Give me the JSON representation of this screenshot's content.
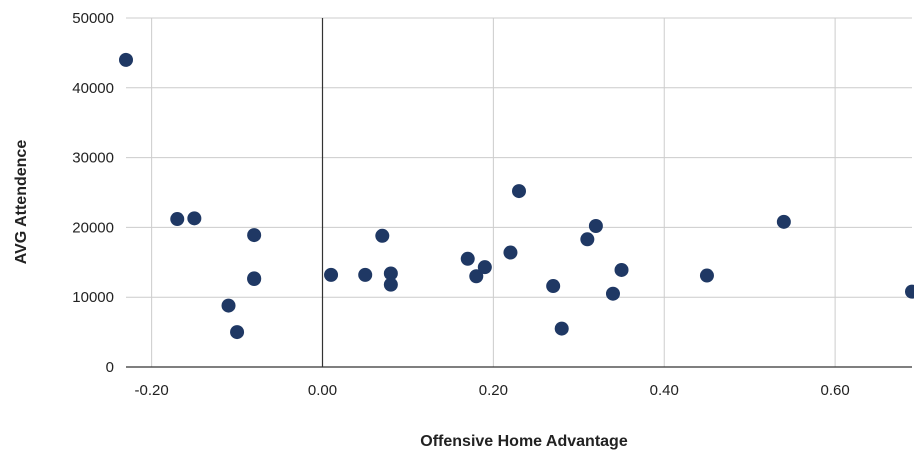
{
  "chart_data": {
    "type": "scatter",
    "xlabel": "Offensive Home Advantage",
    "ylabel": "AVG Attendence",
    "xlim": [
      -0.23,
      0.69
    ],
    "ylim": [
      0,
      50000
    ],
    "x_ticks": [
      -0.2,
      0.0,
      0.2,
      0.4,
      0.6
    ],
    "x_tick_labels": [
      "-0.20",
      "0.00",
      "0.20",
      "0.40",
      "0.60"
    ],
    "y_ticks": [
      0,
      10000,
      20000,
      30000,
      40000,
      50000
    ],
    "y_tick_labels": [
      "0",
      "10000",
      "20000",
      "30000",
      "40000",
      "50000"
    ],
    "grid": true,
    "marker_color": "#1f3864",
    "series": [
      {
        "points": [
          {
            "x": -0.23,
            "y": 44000
          },
          {
            "x": -0.17,
            "y": 21200
          },
          {
            "x": -0.15,
            "y": 21300
          },
          {
            "x": -0.11,
            "y": 8800
          },
          {
            "x": -0.1,
            "y": 5000
          },
          {
            "x": -0.08,
            "y": 18900
          },
          {
            "x": -0.08,
            "y": 12700
          },
          {
            "x": -0.08,
            "y": 12600
          },
          {
            "x": 0.01,
            "y": 13200
          },
          {
            "x": 0.05,
            "y": 13200
          },
          {
            "x": 0.07,
            "y": 18800
          },
          {
            "x": 0.08,
            "y": 13400
          },
          {
            "x": 0.08,
            "y": 11800
          },
          {
            "x": 0.17,
            "y": 15500
          },
          {
            "x": 0.18,
            "y": 13000
          },
          {
            "x": 0.19,
            "y": 14300
          },
          {
            "x": 0.22,
            "y": 16400
          },
          {
            "x": 0.23,
            "y": 25200
          },
          {
            "x": 0.27,
            "y": 11600
          },
          {
            "x": 0.28,
            "y": 5500
          },
          {
            "x": 0.31,
            "y": 18300
          },
          {
            "x": 0.32,
            "y": 20200
          },
          {
            "x": 0.34,
            "y": 10500
          },
          {
            "x": 0.35,
            "y": 13900
          },
          {
            "x": 0.45,
            "y": 13100
          },
          {
            "x": 0.54,
            "y": 20800
          },
          {
            "x": 0.69,
            "y": 10800
          }
        ]
      }
    ]
  }
}
